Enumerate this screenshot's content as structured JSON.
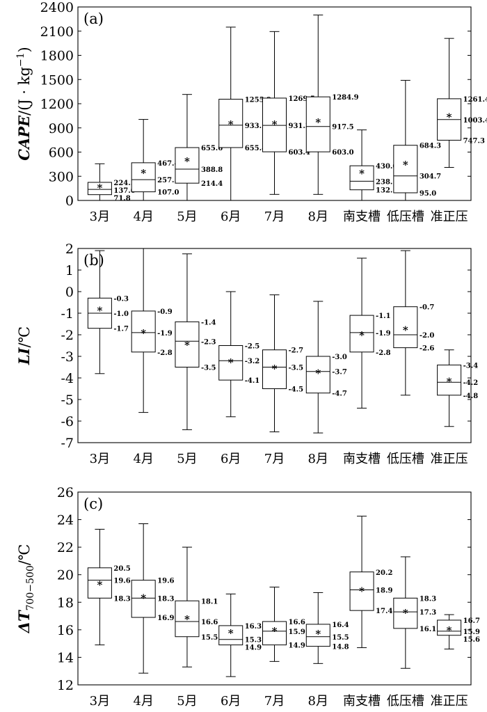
{
  "chart_data": [
    {
      "type": "box",
      "panel_label": "(a)",
      "ylabel": "CAPE/(J · kg⁻¹)",
      "ylabel_main": "CAPE",
      "ylabel_unit": "/(J · kg",
      "ylabel_sup": "−1",
      "ylabel_close": ")",
      "ylim": [
        0,
        2400
      ],
      "yticks": [
        0,
        300,
        600,
        900,
        1200,
        1500,
        1800,
        2100,
        2400
      ],
      "categories": [
        "3月",
        "4月",
        "5月",
        "6月",
        "7月",
        "8月",
        "南支槽",
        "低压槽",
        "准正压"
      ],
      "boxes": [
        {
          "min": 0,
          "q1": 71.8,
          "median": 137.0,
          "q3": 224.5,
          "max": 455,
          "mean": 165
        },
        {
          "min": 0,
          "q1": 107.0,
          "median": 257.5,
          "q3": 467.4,
          "max": 1005,
          "mean": 345
        },
        {
          "min": 0,
          "q1": 214.4,
          "median": 388.8,
          "q3": 655.6,
          "max": 1315,
          "mean": 490
        },
        {
          "min": 0,
          "q1": 655.8,
          "median": 933.5,
          "q3": 1255.9,
          "max": 2150,
          "mean": 950
        },
        {
          "min": 75,
          "q1": 603.4,
          "median": 931.3,
          "q3": 1269.5,
          "max": 2095,
          "mean": 950
        },
        {
          "min": 75,
          "q1": 603.0,
          "median": 917.5,
          "q3": 1284.9,
          "max": 2300,
          "mean": 975
        },
        {
          "min": 0,
          "q1": 132.1,
          "median": 238.1,
          "q3": 430.0,
          "max": 875,
          "mean": 340
        },
        {
          "min": 0,
          "q1": 95.0,
          "median": 304.7,
          "q3": 684.3,
          "max": 1490,
          "mean": 450
        },
        {
          "min": 410,
          "q1": 747.3,
          "median": 1003.4,
          "q3": 1261.4,
          "max": 2010,
          "mean": 1040
        }
      ],
      "labels": [
        [
          "224.5",
          "137.0",
          "71.8"
        ],
        [
          "467.4",
          "257.5",
          "107.0"
        ],
        [
          "655.6",
          "388.8",
          "214.4"
        ],
        [
          "1255.9",
          "933.5",
          "655.8"
        ],
        [
          "1269.5",
          "931.3",
          "603.4"
        ],
        [
          "1284.9",
          "917.5",
          "603.0"
        ],
        [
          "430.0",
          "238.1",
          "132.1"
        ],
        [
          "684.3",
          "304.7",
          "95.0"
        ],
        [
          "1261.4",
          "1003.4",
          "747.3"
        ]
      ]
    },
    {
      "type": "box",
      "panel_label": "(b)",
      "ylabel": "LI/°C",
      "ylabel_main": "LI",
      "ylabel_unit": "/℃",
      "ylim": [
        -7,
        2
      ],
      "yticks": [
        -7,
        -6,
        -5,
        -4,
        -3,
        -2,
        -1,
        0,
        1,
        2
      ],
      "categories": [
        "3月",
        "4月",
        "5月",
        "6月",
        "7月",
        "8月",
        "南支槽",
        "低压槽",
        "准正压"
      ],
      "boxes": [
        {
          "min": -3.8,
          "q1": -1.7,
          "median": -1.0,
          "q3": -0.3,
          "max": 1.9,
          "mean": -0.85
        },
        {
          "min": -5.6,
          "q1": -2.8,
          "median": -1.9,
          "q3": -0.9,
          "max": 2.0,
          "mean": -1.9
        },
        {
          "min": -6.4,
          "q1": -3.5,
          "median": -2.3,
          "q3": -1.4,
          "max": 1.75,
          "mean": -2.45
        },
        {
          "min": -5.8,
          "q1": -4.1,
          "median": -3.2,
          "q3": -2.5,
          "max": 0.0,
          "mean": -3.25
        },
        {
          "min": -6.5,
          "q1": -4.5,
          "median": -3.5,
          "q3": -2.7,
          "max": -0.15,
          "mean": -3.55
        },
        {
          "min": -6.55,
          "q1": -4.7,
          "median": -3.7,
          "q3": -3.0,
          "max": -0.45,
          "mean": -3.75
        },
        {
          "min": -5.4,
          "q1": -2.8,
          "median": -1.9,
          "q3": -1.1,
          "max": 1.55,
          "mean": -2.0
        },
        {
          "min": -4.8,
          "q1": -2.6,
          "median": -2.0,
          "q3": -0.7,
          "max": 1.9,
          "mean": -1.75
        },
        {
          "min": -6.25,
          "q1": -4.8,
          "median": -4.2,
          "q3": -3.4,
          "max": -2.7,
          "mean": -4.15
        }
      ],
      "labels": [
        [
          "-0.3",
          "-1.0",
          "-1.7"
        ],
        [
          "-0.9",
          "-1.9",
          "-2.8"
        ],
        [
          "-1.4",
          "-2.3",
          "-3.5"
        ],
        [
          "-2.5",
          "-3.2",
          "-4.1"
        ],
        [
          "-2.7",
          "-3.5",
          "-4.5"
        ],
        [
          "-3.0",
          "-3.7",
          "-4.7"
        ],
        [
          "-1.1",
          "-1.9",
          "-2.8"
        ],
        [
          "-0.7",
          "-2.0",
          "-2.6"
        ],
        [
          "-3.4",
          "-4.2",
          "-4.8"
        ]
      ]
    },
    {
      "type": "box",
      "panel_label": "(c)",
      "ylabel": "ΔT700−500/°C",
      "ylabel_main": "ΔT",
      "ylabel_sub": "700−500",
      "ylabel_unit": "/℃",
      "ylim": [
        12,
        26
      ],
      "yticks": [
        12,
        14,
        16,
        18,
        20,
        22,
        24,
        26
      ],
      "categories": [
        "3月",
        "4月",
        "5月",
        "6月",
        "7月",
        "8月",
        "南支槽",
        "低压槽",
        "准正压"
      ],
      "boxes": [
        {
          "min": 14.9,
          "q1": 18.3,
          "median": 19.6,
          "q3": 20.5,
          "max": 23.3,
          "mean": 19.3
        },
        {
          "min": 12.85,
          "q1": 16.9,
          "median": 18.3,
          "q3": 19.6,
          "max": 23.7,
          "mean": 18.35
        },
        {
          "min": 13.3,
          "q1": 15.5,
          "median": 16.6,
          "q3": 18.1,
          "max": 22.0,
          "mean": 16.8
        },
        {
          "min": 12.6,
          "q1": 14.9,
          "median": 15.3,
          "q3": 16.3,
          "max": 18.6,
          "mean": 15.8
        },
        {
          "min": 13.7,
          "q1": 14.9,
          "median": 15.9,
          "q3": 16.6,
          "max": 19.1,
          "mean": 15.95
        },
        {
          "min": 13.55,
          "q1": 14.8,
          "median": 15.5,
          "q3": 16.4,
          "max": 18.7,
          "mean": 15.75
        },
        {
          "min": 14.7,
          "q1": 17.4,
          "median": 18.9,
          "q3": 20.2,
          "max": 24.25,
          "mean": 18.85
        },
        {
          "min": 13.2,
          "q1": 16.1,
          "median": 17.3,
          "q3": 18.3,
          "max": 21.3,
          "mean": 17.25
        },
        {
          "min": 14.6,
          "q1": 15.6,
          "median": 15.9,
          "q3": 16.7,
          "max": 17.1,
          "mean": 16.0
        }
      ],
      "labels": [
        [
          "20.5",
          "19.6",
          "18.3"
        ],
        [
          "19.6",
          "18.3",
          "16.9"
        ],
        [
          "18.1",
          "16.6",
          "15.5"
        ],
        [
          "16.3",
          "15.3",
          "14.9"
        ],
        [
          "16.6",
          "15.9",
          "14.9"
        ],
        [
          "16.4",
          "15.5",
          "14.8"
        ],
        [
          "20.2",
          "18.9",
          "17.4"
        ],
        [
          "18.3",
          "17.3",
          "16.1"
        ],
        [
          "16.7",
          "15.9",
          "15.6"
        ]
      ]
    }
  ]
}
